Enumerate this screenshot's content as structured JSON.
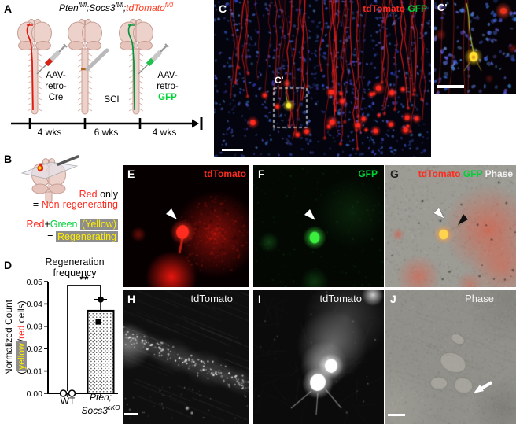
{
  "colors": {
    "tdtomato": "#ff2a1e",
    "gfp": "#00d236",
    "phase": "#f2f2f2",
    "yellow_highlight": "#ffee00",
    "highlight_bg": "#8d8d8d",
    "genotype_red": "#ff3b1f"
  },
  "panel_a": {
    "label": "A",
    "title": {
      "g1": "Pten",
      "g1_sup": "fl/fl",
      "g2": ";Socs3",
      "g2_sup": "fl/fl",
      "sep": ";",
      "g3": "tdTomato",
      "g3_sup": "fl/fl"
    },
    "injection1": {
      "l1": "AAV-",
      "l2": "retro-",
      "l3": "Cre"
    },
    "injection2": "SCI",
    "injection3": {
      "l1": "AAV-",
      "l2": "retro-",
      "l3": "GFP"
    },
    "timeline": [
      "4 wks",
      "6 wks",
      "4 wks"
    ]
  },
  "panel_b": {
    "label": "B",
    "legend1": {
      "red": "Red",
      "black": " only"
    },
    "legend2": {
      "eq": "= ",
      "red": "Non-regenerating"
    },
    "legend3": {
      "red": "Red",
      "plus": "+",
      "green": "Green",
      "yellow": "(Yellow)"
    },
    "legend4": {
      "eq": "= ",
      "yellow": "Regenerating"
    }
  },
  "panel_c": {
    "label": "C",
    "marker_red": "tdTomato",
    "marker_green": "GFP",
    "inset_label": "C'"
  },
  "panel_c_inset": {
    "label": "C'"
  },
  "panel_d": {
    "label": "D",
    "title_line1": "Regeneration",
    "title_line2": "frequency",
    "ylabel_line1": "Normalized Count",
    "ylabel_line2": {
      "pre": "(",
      "yellow": "yellow",
      "slash": "/",
      "red": "red",
      "post": " cells)"
    },
    "x_wt": "WT",
    "x_cko_line1": "Pten;",
    "x_cko_base": "Socs3",
    "x_cko_sup": "cKO",
    "chart_data": {
      "type": "bar",
      "title": "Regeneration frequency",
      "ylabel": "Normalized Count (yellow/red cells)",
      "categories": [
        "WT",
        "Pten;Socs3cKO"
      ],
      "values": [
        0,
        0.037
      ],
      "error_upper": [
        0,
        0.005
      ],
      "points": [
        [
          0,
          0
        ],
        [
          0.042,
          0.032
        ]
      ],
      "point_markers": [
        [
          "open-circle",
          "open-circle"
        ],
        [
          "filled-circle",
          "filled-square"
        ]
      ],
      "ylim": [
        0,
        0.05
      ],
      "yticks": [
        0,
        0.01,
        0.02,
        0.03,
        0.04,
        0.05
      ],
      "ytick_labels": [
        "0.00",
        "0.01",
        "0.02",
        "0.03",
        "0.04",
        "0.05"
      ],
      "significance": "**",
      "bar_fill": "stippled",
      "grid": false
    }
  },
  "panel_e": {
    "label": "E",
    "marker": "tdTomato"
  },
  "panel_f": {
    "label": "F",
    "marker": "GFP"
  },
  "panel_g": {
    "label": "G",
    "marker_red": "tdTomato",
    "marker_green": "GFP",
    "marker_white": "Phase"
  },
  "panel_h": {
    "label": "H",
    "marker": "tdTomato"
  },
  "panel_i": {
    "label": "I",
    "marker": "tdTomato"
  },
  "panel_j": {
    "label": "J",
    "marker": "Phase"
  }
}
